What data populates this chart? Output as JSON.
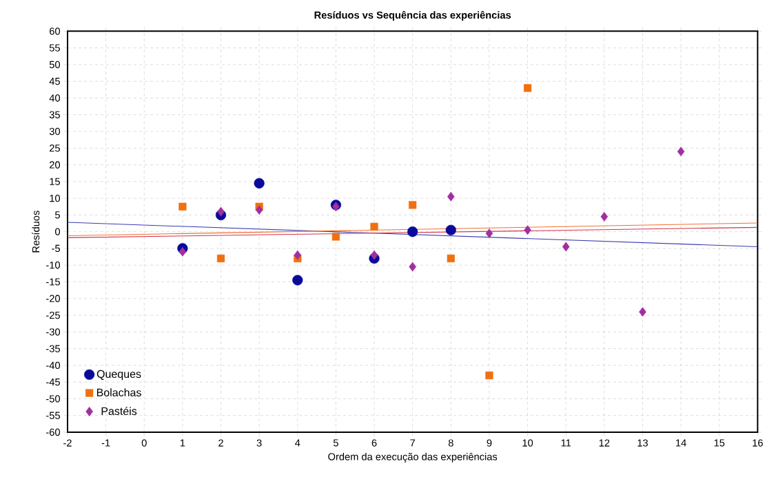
{
  "chart_data": {
    "type": "scatter",
    "title": "Resíduos vs Sequência das experiências",
    "xlabel": "Ordem da execução das experiências",
    "ylabel": "Resíduos",
    "xlim": [
      -2,
      16
    ],
    "xticks": [
      -2,
      -1,
      0,
      1,
      2,
      3,
      4,
      5,
      6,
      7,
      8,
      9,
      10,
      11,
      12,
      13,
      14,
      15,
      16
    ],
    "ylim": [
      -60,
      60
    ],
    "yticks": [
      -60,
      -55,
      -50,
      -45,
      -40,
      -35,
      -30,
      -25,
      -20,
      -15,
      -10,
      -5,
      0,
      5,
      10,
      15,
      20,
      25,
      30,
      35,
      40,
      45,
      50,
      55,
      60
    ],
    "grid": true,
    "legend": "bottom left",
    "series": [
      {
        "name": "Queques",
        "color": "#0a0a9a",
        "marker": "circle",
        "x": [
          1,
          2,
          3,
          4,
          5,
          6,
          7,
          8
        ],
        "values": [
          -5,
          5,
          14.5,
          -14.5,
          8,
          -8,
          0,
          0.5
        ]
      },
      {
        "name": "Bolachas",
        "color": "#f07010",
        "marker": "square",
        "x": [
          1,
          2,
          3,
          4,
          5,
          6,
          7,
          8,
          9,
          10
        ],
        "values": [
          7.5,
          -8,
          7.5,
          -8,
          -1.5,
          1.5,
          8,
          -8,
          -43,
          43
        ]
      },
      {
        "name": "Pastéis",
        "color": "#a030a0",
        "marker": "diamond",
        "x": [
          1,
          2,
          3,
          4,
          5,
          6,
          7,
          8,
          9,
          10,
          11,
          12,
          13,
          14
        ],
        "values": [
          -6,
          6,
          6.5,
          -7,
          7.5,
          -7,
          -10.5,
          10.5,
          -0.5,
          0.5,
          -4.5,
          4.5,
          -24,
          24
        ]
      },
      {
        "type": "line",
        "color": "#3a3ab0",
        "line_style": "solid",
        "x": [
          -2,
          16
        ],
        "values": [
          2.8,
          -4.5
        ]
      },
      {
        "type": "line",
        "color": "#f07030",
        "line_style": "solid",
        "x": [
          -2,
          16
        ],
        "values": [
          -1.2,
          2.6
        ]
      },
      {
        "type": "line",
        "color": "#d0304a",
        "line_style": "solid",
        "x": [
          -2,
          16
        ],
        "values": [
          -1.8,
          1.3
        ]
      }
    ]
  }
}
